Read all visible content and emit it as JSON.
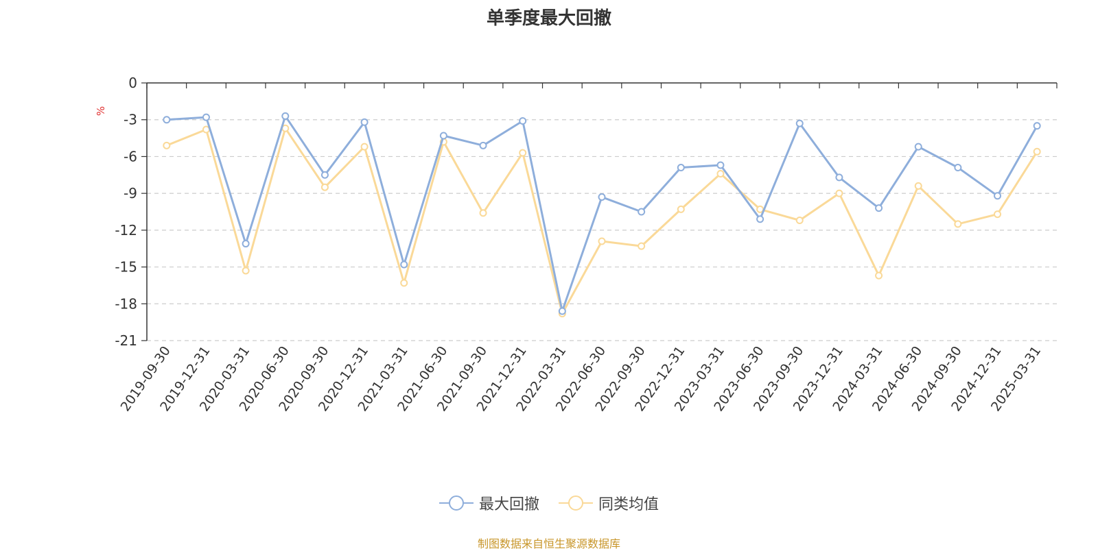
{
  "chart_data": {
    "type": "line",
    "title": "单季度最大回撤",
    "ylabel": "%",
    "xlabel": "",
    "ylim": [
      -21,
      0
    ],
    "yticks": [
      0,
      -3,
      -6,
      -9,
      -12,
      -15,
      -18,
      -21
    ],
    "grid": true,
    "legend_position": "bottom-center",
    "categories": [
      "2019-09-30",
      "2019-12-31",
      "2020-03-31",
      "2020-06-30",
      "2020-09-30",
      "2020-12-31",
      "2021-03-31",
      "2021-06-30",
      "2021-09-30",
      "2021-12-31",
      "2022-03-31",
      "2022-06-30",
      "2022-09-30",
      "2022-12-31",
      "2023-03-31",
      "2023-06-30",
      "2023-09-30",
      "2023-12-31",
      "2024-03-31",
      "2024-06-30",
      "2024-09-30",
      "2024-12-31",
      "2025-03-31"
    ],
    "series": [
      {
        "name": "最大回撤",
        "color": "#8eaedb",
        "values": [
          -3.0,
          -2.8,
          -13.1,
          -2.7,
          -7.5,
          -3.2,
          -14.8,
          -4.3,
          -5.1,
          -3.1,
          -18.6,
          -9.3,
          -10.5,
          -6.9,
          -6.7,
          -11.1,
          -3.3,
          -7.7,
          -10.2,
          -5.2,
          -6.9,
          -9.2,
          -3.5
        ]
      },
      {
        "name": "同类均值",
        "color": "#fad998",
        "values": [
          -5.1,
          -3.8,
          -15.3,
          -3.7,
          -8.5,
          -5.2,
          -16.3,
          -4.8,
          -10.6,
          -5.7,
          -18.8,
          -12.9,
          -13.3,
          -10.3,
          -7.4,
          -10.3,
          -11.2,
          -9.0,
          -15.7,
          -8.4,
          -11.5,
          -10.7,
          -5.6
        ]
      }
    ]
  },
  "source_note": "制图数据来自恒生聚源数据库"
}
